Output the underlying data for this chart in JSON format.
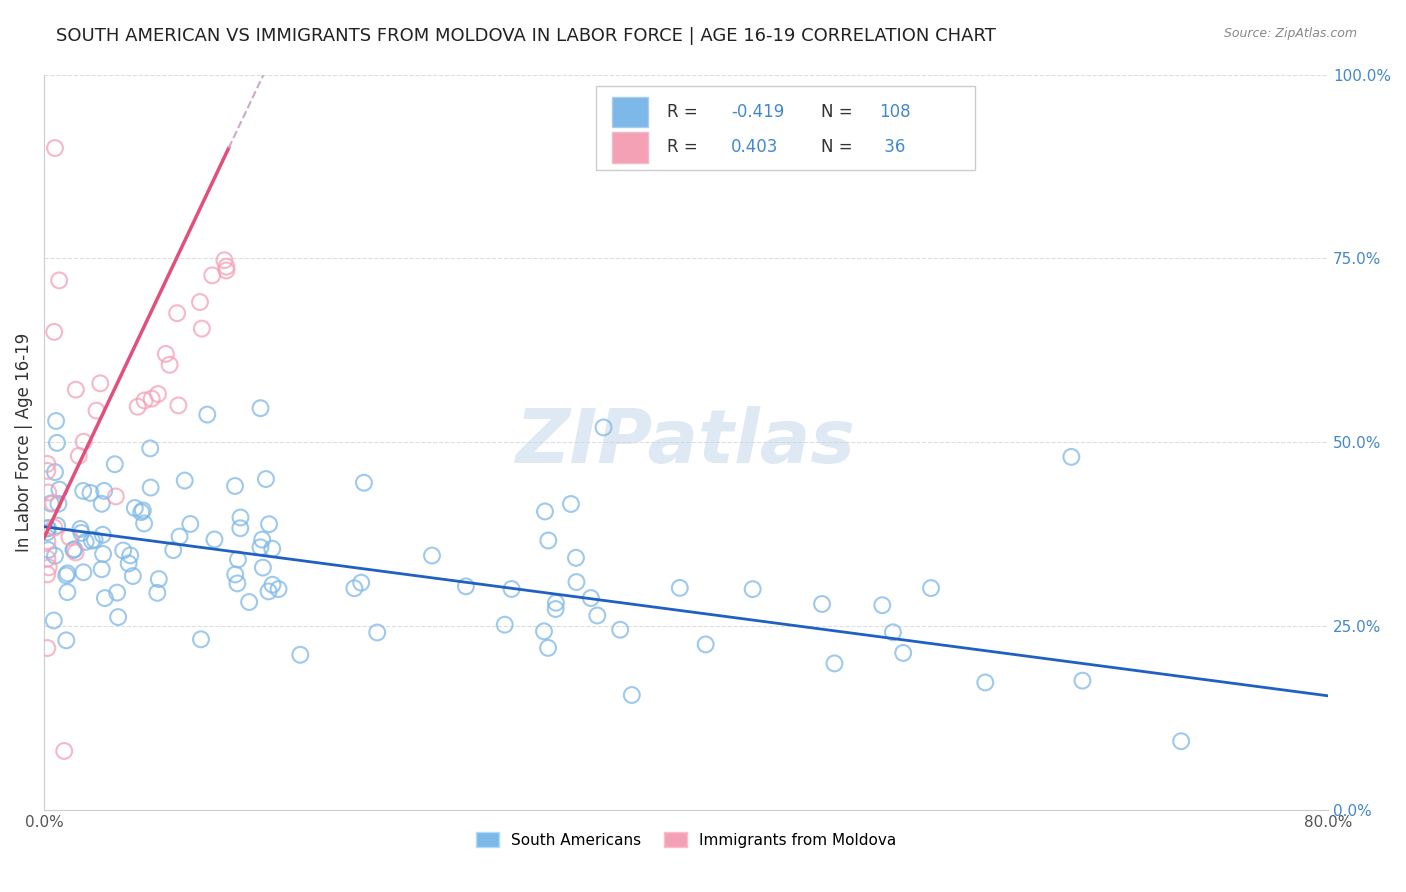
{
  "title": "SOUTH AMERICAN VS IMMIGRANTS FROM MOLDOVA IN LABOR FORCE | AGE 16-19 CORRELATION CHART",
  "source": "Source: ZipAtlas.com",
  "ylabel": "In Labor Force | Age 16-19",
  "xlim": [
    0.0,
    0.8
  ],
  "ylim": [
    0.0,
    1.0
  ],
  "xtick_labels": [
    "0.0%",
    "80.0%"
  ],
  "ytick_labels": [
    "0.0%",
    "25.0%",
    "50.0%",
    "75.0%",
    "100.0%"
  ],
  "ytick_values": [
    0.0,
    0.25,
    0.5,
    0.75,
    1.0
  ],
  "xtick_values": [
    0.0,
    0.8
  ],
  "grid_color": "#dddddd",
  "background_color": "#ffffff",
  "blue_color": "#7eb8e8",
  "pink_color": "#f4a0b5",
  "blue_line_color": "#2060c0",
  "pink_line_color": "#e0507a",
  "pink_dashed_color": "#ccaacc",
  "legend_label_blue": "South Americans",
  "legend_label_pink": "Immigrants from Moldova",
  "watermark_text": "ZIPatlas",
  "title_fontsize": 13,
  "axis_label_fontsize": 12,
  "tick_fontsize": 11
}
